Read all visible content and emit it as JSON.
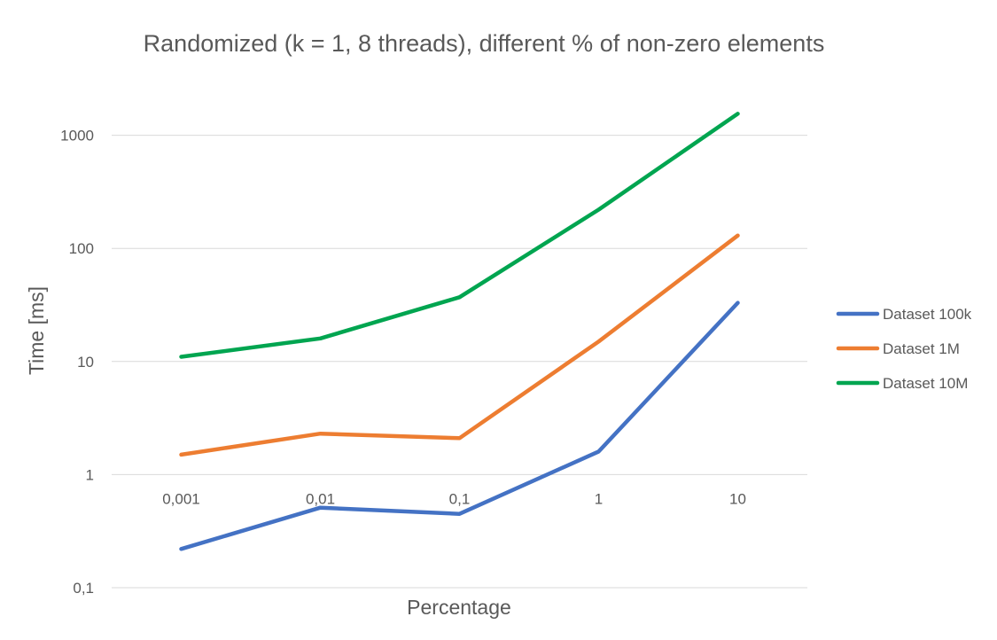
{
  "chart_data": {
    "type": "line",
    "title": "Randomized (k = 1, 8 threads), different % of non-zero elements",
    "xlabel": "Percentage",
    "ylabel": "Time [ms]",
    "categories": [
      "0,001",
      "0,01",
      "0,1",
      "1",
      "10"
    ],
    "y_scale": "log",
    "ylim": [
      0.1,
      10000
    ],
    "y_ticks": [
      {
        "value": 0.1,
        "label": "0,1"
      },
      {
        "value": 1,
        "label": "1"
      },
      {
        "value": 10,
        "label": "10"
      },
      {
        "value": 100,
        "label": "100"
      },
      {
        "value": 1000,
        "label": "1000"
      }
    ],
    "x_axis_crosses_at": 1,
    "grid": true,
    "legend_position": "right",
    "series": [
      {
        "name": "Dataset 100k",
        "color": "#4472C4",
        "values": [
          0.22,
          0.51,
          0.45,
          1.6,
          33
        ]
      },
      {
        "name": "Dataset 1M",
        "color": "#ED7D31",
        "values": [
          1.5,
          2.3,
          2.1,
          15,
          130
        ]
      },
      {
        "name": "Dataset 10M",
        "color": "#00A550",
        "values": [
          11,
          16,
          37,
          220,
          1550
        ]
      }
    ]
  }
}
